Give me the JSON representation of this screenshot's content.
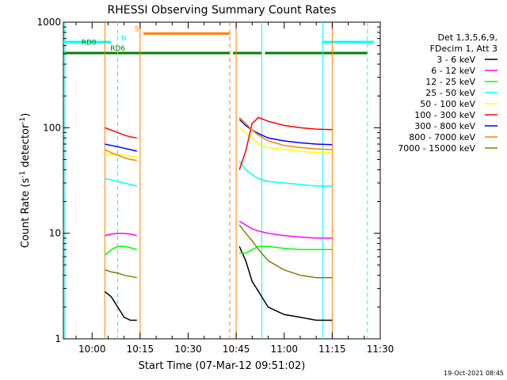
{
  "chart_data": {
    "type": "line",
    "title": "RHESSI Observing Summary Count Rates",
    "xlabel": "Start Time (07-Mar-12 09:51:02)",
    "ylabel_parts": [
      "Count Rate (s",
      "-1",
      " detector",
      "-1",
      ")"
    ],
    "y_scale": "log",
    "ylim": [
      1,
      1000
    ],
    "xlim": [
      "09:51:02",
      "11:30"
    ],
    "x_ticks": [
      "10:00",
      "10:15",
      "10:30",
      "10:45",
      "11:00",
      "11:15",
      "11:30"
    ],
    "y_ticks": [
      "1",
      "10",
      "100",
      "1000"
    ],
    "timestamp": "19-Oct-2021 08:45",
    "legend": {
      "header": [
        "Det 1,3,5,6,9,",
        "FDecim 1, Att 3"
      ],
      "placement": "right"
    },
    "series": [
      {
        "name": "3 - 6 keV",
        "color": "#000000",
        "segments": [
          {
            "x": [
              "10:04",
              "10:06",
              "10:08",
              "10:10",
              "10:12",
              "10:14"
            ],
            "y": [
              2.8,
              2.5,
              2.0,
              1.6,
              1.5,
              1.5
            ]
          },
          {
            "x": [
              "10:46",
              "10:48",
              "10:50",
              "10:52",
              "10:55",
              "11:00",
              "11:05",
              "11:10",
              "11:15"
            ],
            "y": [
              7.5,
              5.5,
              3.5,
              2.8,
              2.0,
              1.7,
              1.6,
              1.5,
              1.5
            ]
          }
        ]
      },
      {
        "name": "6 - 12 keV",
        "color": "#ff00ff",
        "segments": [
          {
            "x": [
              "10:04",
              "10:06",
              "10:08",
              "10:10",
              "10:12",
              "10:14"
            ],
            "y": [
              9.5,
              9.8,
              10.0,
              10.0,
              9.8,
              9.5
            ]
          },
          {
            "x": [
              "10:46",
              "10:48",
              "10:50",
              "10:52",
              "10:55",
              "11:00",
              "11:05",
              "11:10",
              "11:15"
            ],
            "y": [
              13,
              12,
              11,
              10.5,
              10,
              9.5,
              9.2,
              9.0,
              9.0
            ]
          }
        ]
      },
      {
        "name": "12 - 25 keV",
        "color": "#00ff00",
        "segments": [
          {
            "x": [
              "10:04",
              "10:06",
              "10:08",
              "10:10",
              "10:12",
              "10:14"
            ],
            "y": [
              6.2,
              7.0,
              7.5,
              7.5,
              7.3,
              7.0
            ]
          },
          {
            "x": [
              "10:46",
              "10:48",
              "10:50",
              "10:52",
              "10:55",
              "11:00",
              "11:05",
              "11:10",
              "11:15"
            ],
            "y": [
              6.5,
              6.5,
              7.0,
              7.5,
              7.5,
              7.2,
              7.0,
              7.0,
              7.0
            ]
          }
        ]
      },
      {
        "name": "25 - 50 keV",
        "color": "#00ffff",
        "segments": [
          {
            "x": [
              "10:04",
              "10:06",
              "10:08",
              "10:10",
              "10:12",
              "10:14"
            ],
            "y": [
              33,
              32,
              31,
              30,
              29,
              28
            ]
          },
          {
            "x": [
              "10:46",
              "10:48",
              "10:50",
              "10:52",
              "10:55",
              "11:00",
              "11:05",
              "11:10",
              "11:15"
            ],
            "y": [
              48,
              40,
              36,
              33,
              31,
              30,
              29,
              28,
              28
            ]
          }
        ]
      },
      {
        "name": "50 - 100 keV",
        "color": "#ffff00",
        "segments": [
          {
            "x": [
              "10:04",
              "10:06",
              "10:08",
              "10:10",
              "10:12",
              "10:14"
            ],
            "y": [
              55,
              56,
              56,
              55,
              54,
              53
            ]
          },
          {
            "x": [
              "10:46",
              "10:48",
              "10:50",
              "10:52",
              "10:55",
              "11:00",
              "11:05",
              "11:10",
              "11:15"
            ],
            "y": [
              100,
              90,
              80,
              70,
              65,
              62,
              60,
              58,
              58
            ]
          }
        ]
      },
      {
        "name": "100 - 300 keV",
        "color": "#ff0000",
        "segments": [
          {
            "x": [
              "10:04",
              "10:06",
              "10:08",
              "10:10",
              "10:12",
              "10:14"
            ],
            "y": [
              100,
              95,
              90,
              85,
              82,
              80
            ]
          },
          {
            "x": [
              "10:46",
              "10:48",
              "10:50",
              "10:52",
              "10:55",
              "11:00",
              "11:05",
              "11:10",
              "11:15"
            ],
            "y": [
              40,
              60,
              110,
              125,
              115,
              105,
              100,
              97,
              96
            ]
          }
        ]
      },
      {
        "name": "300 - 800 keV",
        "color": "#0000ff",
        "segments": [
          {
            "x": [
              "10:04",
              "10:06",
              "10:08",
              "10:10",
              "10:12",
              "10:14"
            ],
            "y": [
              70,
              68,
              66,
              64,
              62,
              60
            ]
          },
          {
            "x": [
              "10:46",
              "10:48",
              "10:50",
              "10:52",
              "10:55",
              "11:00",
              "11:05",
              "11:10",
              "11:15"
            ],
            "y": [
              120,
              105,
              95,
              88,
              80,
              75,
              72,
              70,
              69
            ]
          }
        ]
      },
      {
        "name": "800 - 7000 keV",
        "color": "#ff8000",
        "segments": [
          {
            "x": [
              "10:04",
              "10:06",
              "10:08",
              "10:10",
              "10:12",
              "10:14"
            ],
            "y": [
              62,
              58,
              55,
              52,
              50,
              49
            ]
          },
          {
            "x": [
              "10:46",
              "10:48",
              "10:50",
              "10:52",
              "10:55",
              "11:00",
              "11:05",
              "11:10",
              "11:15"
            ],
            "y": [
              125,
              110,
              95,
              85,
              75,
              68,
              65,
              63,
              62
            ]
          }
        ]
      },
      {
        "name": "7000 - 15000 keV",
        "color": "#808000",
        "segments": [
          {
            "x": [
              "10:04",
              "10:06",
              "10:08",
              "10:10",
              "10:12",
              "10:14"
            ],
            "y": [
              4.5,
              4.3,
              4.2,
              4.0,
              3.9,
              3.8
            ]
          },
          {
            "x": [
              "10:46",
              "10:48",
              "10:50",
              "10:52",
              "10:55",
              "11:00",
              "11:05",
              "11:10",
              "11:15"
            ],
            "y": [
              12,
              10,
              8.5,
              7.0,
              5.5,
              4.5,
              4.0,
              3.8,
              3.8
            ]
          }
        ]
      }
    ],
    "state_bars": [
      {
        "label": "",
        "color": "#00ffff",
        "level": 650,
        "segments": [
          [
            "09:51:02",
            "10:06"
          ],
          [
            "11:12",
            "11:28"
          ]
        ]
      },
      {
        "label": "N",
        "color": "#00ffff",
        "level": 650,
        "segments": []
      },
      {
        "label": "S",
        "color": "#ff8000",
        "level": 780,
        "segments": [
          [
            "10:16",
            "10:43"
          ]
        ]
      },
      {
        "label": "RD0",
        "color": "#008000",
        "level": 570,
        "segments": []
      },
      {
        "label": "RD6",
        "color": "#008000",
        "level": 510,
        "segments": [
          [
            "09:51:02",
            "10:43"
          ],
          [
            "10:44",
            "10:53"
          ],
          [
            "10:54",
            "11:26"
          ]
        ]
      }
    ],
    "markers": [
      {
        "color": "#00ffff",
        "style": "solid",
        "x": [
          "09:51:30",
          "11:12"
        ]
      },
      {
        "color": "#00ffff",
        "style": "dashed",
        "x": [
          "10:08",
          "11:26"
        ]
      },
      {
        "color": "#ff8000",
        "style": "solid",
        "x": [
          "10:04",
          "10:15",
          "11:15",
          "10:45"
        ]
      },
      {
        "color": "#ff8000",
        "style": "dashed",
        "x": [
          "10:43"
        ]
      },
      {
        "color": "#00ffff",
        "style": "solid",
        "x": [
          "10:53"
        ]
      }
    ]
  }
}
